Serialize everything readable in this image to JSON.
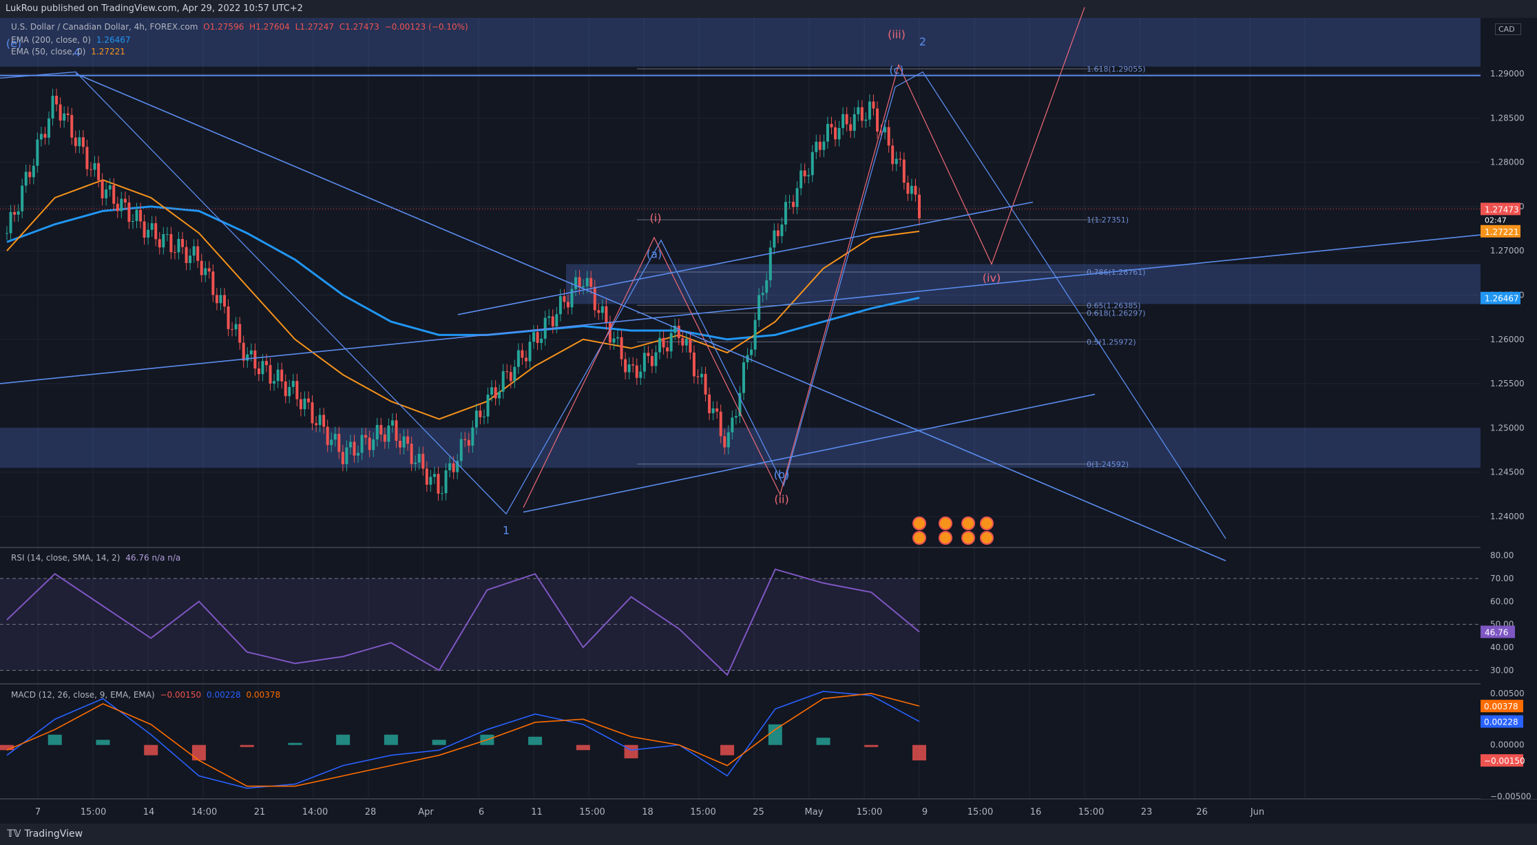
{
  "header": {
    "publisher": "LukRou published on TradingView.com, Apr 29, 2022 10:57 UTC+2"
  },
  "footer": {
    "brand": "TradingView"
  },
  "colors": {
    "bg": "#131722",
    "grid": "#1f2433",
    "up": "#26a69a",
    "down": "#ef5350",
    "ema200": "#2196f3",
    "ema50": "#f7931a",
    "wave_blue": "#5b8def",
    "wave_red": "#f06a78",
    "zone": "rgba(96,140,255,0.24)",
    "rsi": "#7e57c2",
    "macd": "#2962ff",
    "signal": "#ff6d00"
  },
  "legend": {
    "symbol": "U.S. Dollar / Canadian Dollar, 4h, FOREX.com",
    "open": "O1.27596",
    "high": "H1.27604",
    "low": "L1.27247",
    "close": "C1.27473",
    "change": "−0.00123 (−0.10%)",
    "ema200_label": "EMA (200, close, 0)",
    "ema200_value": "1.26467",
    "ema50_label": "EMA (50, close, 0)",
    "ema50_value": "1.27221",
    "currency": "CAD"
  },
  "chart_data": [
    {
      "type": "line",
      "title": "U.S. Dollar / Canadian Dollar, 4h, FOREX.com",
      "ylim": [
        1.2365,
        1.2963
      ],
      "price_ticks": [
        "1.29000",
        "1.28500",
        "1.28000",
        "1.27500",
        "1.27000",
        "1.26500",
        "1.26000",
        "1.25500",
        "1.25000",
        "1.24500",
        "1.24000"
      ],
      "x_ticks": [
        "7",
        "15:00",
        "14",
        "14:00",
        "21",
        "14:00",
        "28",
        "Apr",
        "6",
        "11",
        "15:00",
        "18",
        "15:00",
        "25",
        "May",
        "15:00",
        "9",
        "15:00",
        "16",
        "15:00",
        "23",
        "26",
        "Jun"
      ],
      "series": [
        {
          "name": "USDCAD close",
          "x": [
            "Mar 7",
            "Mar 9",
            "Mar 11",
            "Mar 15",
            "Mar 17",
            "Mar 21",
            "Mar 24",
            "Mar 29",
            "Mar 31",
            "Apr 4",
            "Apr 6",
            "Apr 8",
            "Apr 12",
            "Apr 14",
            "Apr 19",
            "Apr 21",
            "Apr 25",
            "Apr 27",
            "Apr 28",
            "Apr 29"
          ],
          "values": [
            1.272,
            1.287,
            1.277,
            1.272,
            1.269,
            1.258,
            1.254,
            1.247,
            1.25,
            1.243,
            1.253,
            1.26,
            1.267,
            1.256,
            1.261,
            1.248,
            1.272,
            1.283,
            1.286,
            1.2747
          ]
        },
        {
          "name": "EMA (200, close, 0)",
          "values": [
            1.271,
            1.273,
            1.2745,
            1.275,
            1.2745,
            1.272,
            1.269,
            1.265,
            1.262,
            1.2605,
            1.2605,
            1.261,
            1.2615,
            1.261,
            1.261,
            1.26,
            1.2605,
            1.262,
            1.2635,
            1.2647
          ]
        },
        {
          "name": "EMA (50, close, 0)",
          "values": [
            1.27,
            1.276,
            1.278,
            1.276,
            1.272,
            1.266,
            1.26,
            1.256,
            1.253,
            1.251,
            1.253,
            1.257,
            1.26,
            1.259,
            1.2605,
            1.2585,
            1.262,
            1.268,
            1.2715,
            1.2722
          ]
        }
      ],
      "price_labels": {
        "last": "1.27473",
        "countdown": "02:47",
        "ema50": "1.27221",
        "ema200": "1.26467"
      },
      "fib_levels": [
        {
          "label": "1.618(1.29055)",
          "value": 1.29055
        },
        {
          "label": "1(1.27351)",
          "value": 1.27351
        },
        {
          "label": "0.786(1.26761)",
          "value": 1.26761
        },
        {
          "label": "0.65(1.26385)",
          "value": 1.26385
        },
        {
          "label": "0.618(1.26297)",
          "value": 1.26297
        },
        {
          "label": "0.5(1.25972)",
          "value": 1.25972
        },
        {
          "label": "0(1.24592)",
          "value": 1.24592
        }
      ],
      "wave_labels": [
        "(e)",
        "4",
        "1",
        "(a)",
        "(b)",
        "(c)",
        "2",
        "(i)",
        "(ii)",
        "(iii)",
        "(iv)"
      ]
    },
    {
      "type": "line",
      "title": "RSI (14, close, SMA, 14, 2)",
      "legend_text": "46.76 n/a n/a",
      "ylim": [
        25,
        82
      ],
      "ticks": [
        "80.00",
        "70.00",
        "60.00",
        "50.00",
        "40.00",
        "30.00"
      ],
      "series": [
        {
          "name": "RSI",
          "values": [
            52,
            72,
            58,
            44,
            60,
            38,
            33,
            36,
            42,
            30,
            65,
            72,
            40,
            62,
            48,
            28,
            74,
            68,
            64,
            46.76
          ]
        }
      ],
      "current": "46.76"
    },
    {
      "type": "bar",
      "title": "MACD (12, 26, close, 9, EMA, EMA)",
      "legend": [
        "−0.00150",
        "0.00228",
        "0.00378"
      ],
      "ylim": [
        -0.0051,
        0.0056
      ],
      "ticks": [
        "0.00500",
        "0.00000",
        "−0.00500"
      ],
      "series": [
        {
          "name": "MACD",
          "values": [
            -0.001,
            0.0025,
            0.0045,
            0.001,
            -0.003,
            -0.0042,
            -0.0038,
            -0.002,
            -0.001,
            -0.0005,
            0.0015,
            0.003,
            0.002,
            -0.0005,
            0.0,
            -0.003,
            0.0035,
            0.0052,
            0.0048,
            0.00228
          ]
        },
        {
          "name": "Signal",
          "values": [
            -0.0005,
            0.0015,
            0.004,
            0.002,
            -0.0015,
            -0.004,
            -0.004,
            -0.003,
            -0.002,
            -0.001,
            0.0005,
            0.0022,
            0.0025,
            0.0008,
            0.0,
            -0.002,
            0.0015,
            0.0045,
            0.005,
            0.00378
          ]
        },
        {
          "name": "Histogram",
          "values": [
            -0.0005,
            0.001,
            0.0005,
            -0.001,
            -0.0015,
            -0.0002,
            0.0002,
            0.001,
            0.001,
            0.0005,
            0.001,
            0.0008,
            -0.0005,
            -0.0013,
            0.0,
            -0.001,
            0.002,
            0.0007,
            -0.0002,
            -0.0015
          ]
        }
      ],
      "current": {
        "macd": "0.00228",
        "signal": "0.00378",
        "hist": "−0.00150"
      }
    }
  ]
}
